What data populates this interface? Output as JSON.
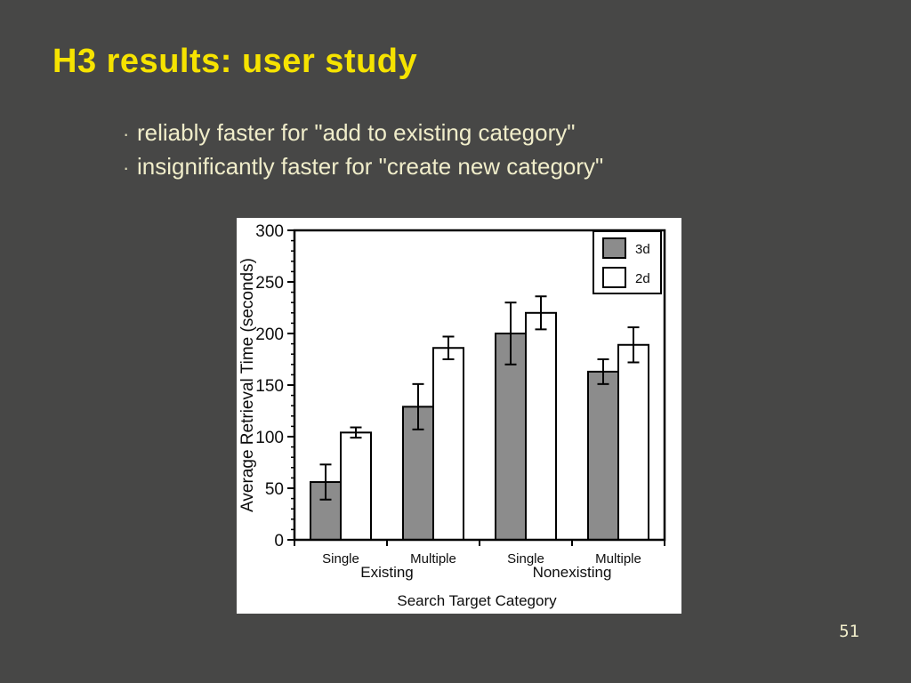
{
  "slide": {
    "title": "H3 results: user study",
    "bullet_char": "·",
    "bullets": [
      "reliably faster for \"add to existing category\"",
      "insignificantly faster for \"create new category\""
    ],
    "page_number": "51",
    "colors": {
      "background": "#474746",
      "title_text": "#f6e300",
      "body_text": "#f0edca",
      "chart_panel": "#ffffff"
    }
  },
  "chart_data": {
    "type": "bar",
    "title": "",
    "xlabel": "Search Target Category",
    "ylabel": "Average Retrieval Time (seconds)",
    "ylim": [
      0,
      300
    ],
    "y_major_ticks": [
      0,
      50,
      100,
      150,
      200,
      250,
      300
    ],
    "y_minor_tick_step": 10,
    "grid": false,
    "categories": [
      "Single",
      "Multiple",
      "Single",
      "Multiple"
    ],
    "group_labels": [
      {
        "label": "Existing",
        "spans": [
          0,
          1
        ]
      },
      {
        "label": "Nonexisting",
        "spans": [
          2,
          3
        ]
      }
    ],
    "series": [
      {
        "name": "3d",
        "color": "#8c8c8c",
        "values": [
          56,
          129,
          200,
          163
        ],
        "errors": [
          17,
          22,
          30,
          12
        ]
      },
      {
        "name": "2d",
        "color": "#ffffff",
        "values": [
          104,
          186,
          220,
          189
        ],
        "errors": [
          5,
          11,
          16,
          17
        ]
      }
    ],
    "legend": {
      "position": "top-right",
      "entries": [
        "3d",
        "2d"
      ]
    }
  }
}
